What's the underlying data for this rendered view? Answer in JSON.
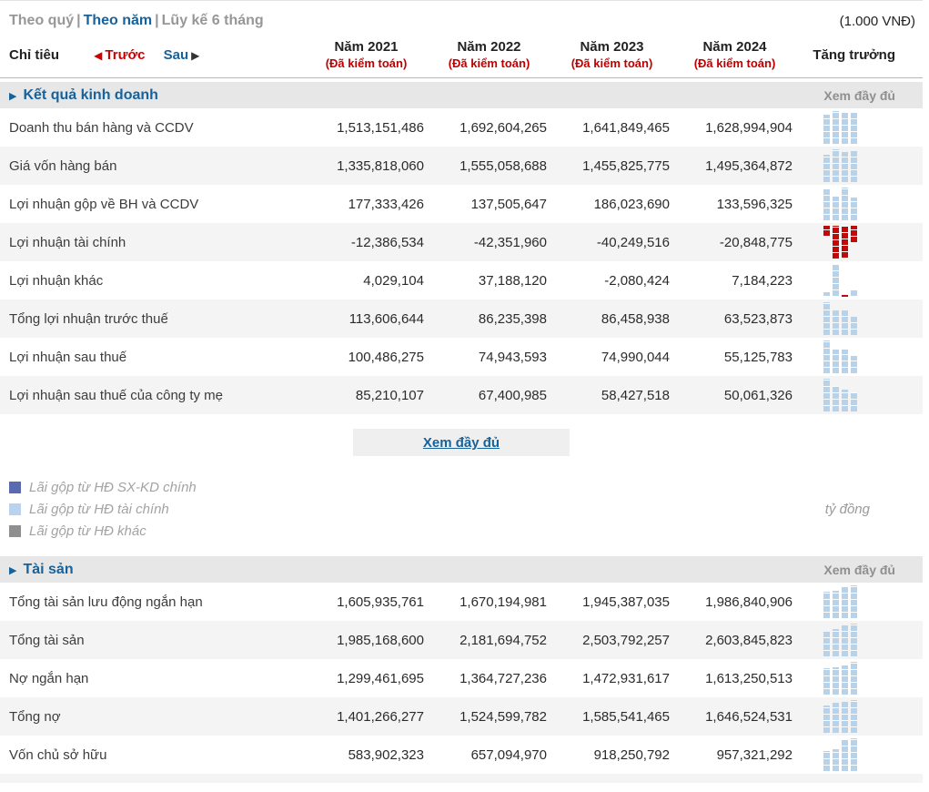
{
  "colors": {
    "accent_blue": "#17629b",
    "audit_red": "#c00000",
    "prev_red": "#cc0000",
    "bar_positive": "#b7d3ec",
    "bar_negative": "#c40808",
    "stripe": "#f4f4f4",
    "section_bg": "#e7e7e7",
    "inactive_gray": "#979797"
  },
  "toolbar": {
    "tabs": [
      {
        "label": "Theo quý",
        "name": "tab-theo-quy",
        "active": false
      },
      {
        "label": "Theo năm",
        "name": "tab-theo-nam",
        "active": true
      },
      {
        "label": "Lũy kế 6 tháng",
        "name": "tab-luy-ke-6-thang",
        "active": false
      }
    ],
    "unit_note": "(1.000 VNĐ)"
  },
  "header": {
    "criteria_label": "Chỉ tiêu",
    "prev_label": "Trước",
    "next_label": "Sau",
    "columns": [
      {
        "year": "Năm 2021",
        "audit": "(Đã kiểm toán)"
      },
      {
        "year": "Năm 2022",
        "audit": "(Đã kiểm toán)"
      },
      {
        "year": "Năm 2023",
        "audit": "(Đã kiểm toán)"
      },
      {
        "year": "Năm 2024",
        "audit": "(Đã kiểm toán)"
      }
    ],
    "growth_label": "Tăng trưởng"
  },
  "sections": [
    {
      "title": "Kết quả kinh doanh",
      "view_all_label": "Xem đầy đủ",
      "rows": [
        {
          "label": "Doanh thu bán hàng và CCDV",
          "values": [
            "1,513,151,486",
            "1,692,604,265",
            "1,641,849,465",
            "1,628,994,904"
          ]
        },
        {
          "label": "Giá vốn hàng bán",
          "values": [
            "1,335,818,060",
            "1,555,058,688",
            "1,455,825,775",
            "1,495,364,872"
          ]
        },
        {
          "label": "Lợi nhuận gộp về BH và CCDV",
          "values": [
            "177,333,426",
            "137,505,647",
            "186,023,690",
            "133,596,325"
          ]
        },
        {
          "label": "Lợi nhuận tài chính",
          "values": [
            "-12,386,534",
            "-42,351,960",
            "-40,249,516",
            "-20,848,775"
          ]
        },
        {
          "label": "Lợi nhuận khác",
          "values": [
            "4,029,104",
            "37,188,120",
            "-2,080,424",
            "7,184,223"
          ]
        },
        {
          "label": "Tổng lợi nhuận trước thuế",
          "values": [
            "113,606,644",
            "86,235,398",
            "86,458,938",
            "63,523,873"
          ]
        },
        {
          "label": "Lợi nhuận sau thuế",
          "values": [
            "100,486,275",
            "74,943,593",
            "74,990,044",
            "55,125,783"
          ]
        },
        {
          "label": "Lợi nhuận sau thuế của công ty mẹ",
          "values": [
            "85,210,107",
            "67,400,985",
            "58,427,518",
            "50,061,326"
          ]
        }
      ]
    },
    {
      "title": "Tài sản",
      "view_all_label": "Xem đầy đủ",
      "rows": [
        {
          "label": "Tổng tài sản lưu động ngắn hạn",
          "values": [
            "1,605,935,761",
            "1,670,194,981",
            "1,945,387,035",
            "1,986,840,906"
          ]
        },
        {
          "label": "Tổng tài sản",
          "values": [
            "1,985,168,600",
            "2,181,694,752",
            "2,503,792,257",
            "2,603,845,823"
          ]
        },
        {
          "label": "Nợ ngắn hạn",
          "values": [
            "1,299,461,695",
            "1,364,727,236",
            "1,472,931,617",
            "1,613,250,513"
          ]
        },
        {
          "label": "Tổng nợ",
          "values": [
            "1,401,266,277",
            "1,524,599,782",
            "1,585,541,465",
            "1,646,524,531"
          ]
        },
        {
          "label": "Vốn chủ sở hữu",
          "values": [
            "583,902,323",
            "657,094,970",
            "918,250,792",
            "957,321,292"
          ]
        }
      ]
    }
  ],
  "expand_button": {
    "label": "Xem đầy đủ"
  },
  "legend": {
    "items": [
      {
        "label": "Lãi gộp từ HĐ SX-KD chính",
        "color": "#5a6ab0"
      },
      {
        "label": "Lãi gộp từ HĐ tài chính",
        "color": "#b9d3ee"
      },
      {
        "label": "Lãi gộp từ HĐ khác",
        "color": "#8f8f8f"
      }
    ],
    "unit": "tỷ đồng"
  }
}
